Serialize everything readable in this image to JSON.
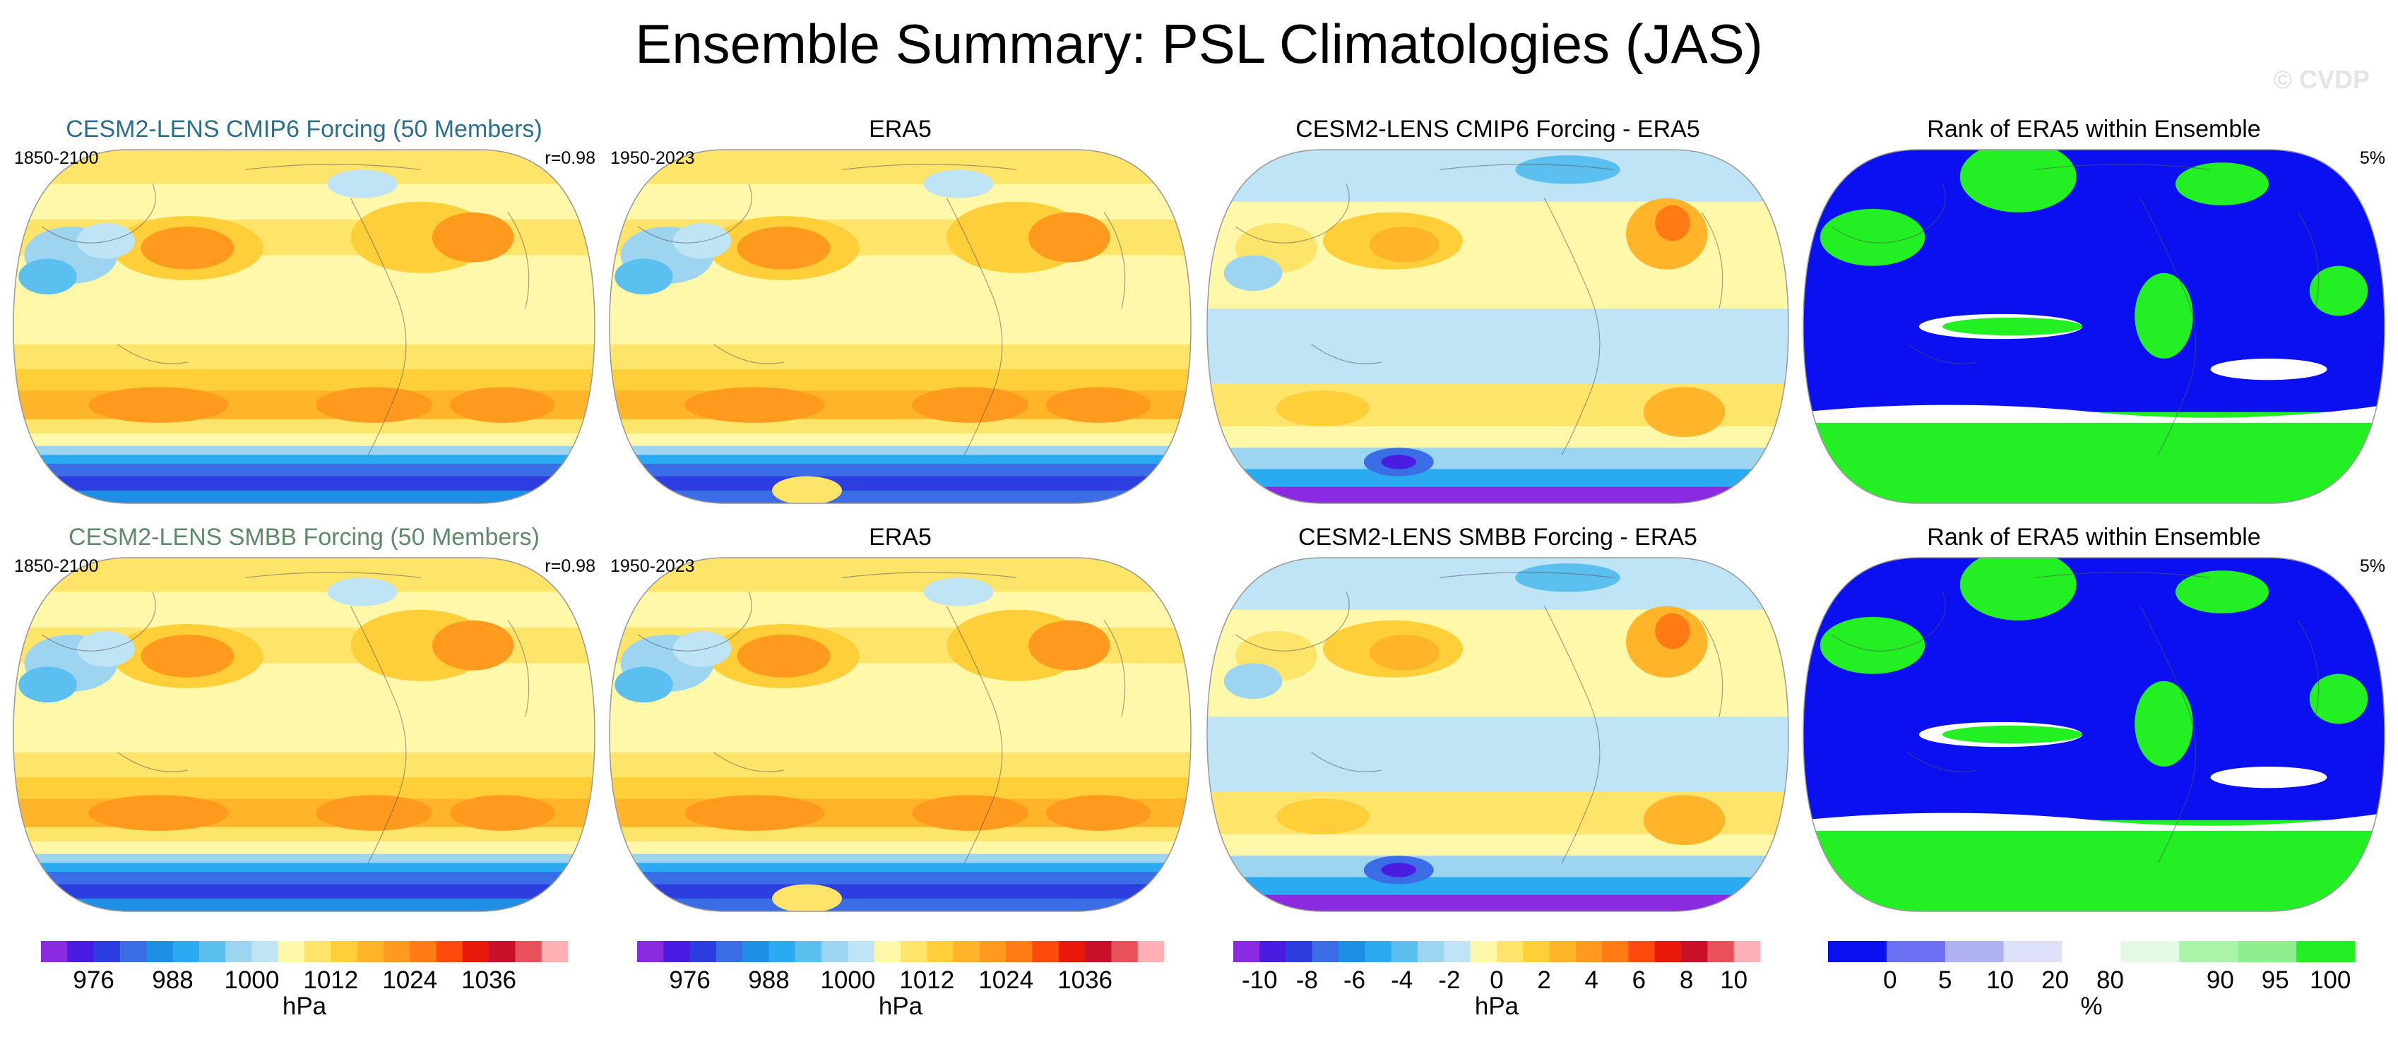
{
  "title": "Ensemble Summary: PSL Climatologies (JAS)",
  "watermark": "© CVDP",
  "panels": [
    {
      "title": "CESM2-LENS CMIP6 Forcing (50 Members)",
      "title_color": "#2c6f8c",
      "left": "1850-2100",
      "right": "r=0.98",
      "kind": "clim"
    },
    {
      "title": "ERA5",
      "title_color": "#000000",
      "left": "1950-2023",
      "right": "",
      "kind": "clim"
    },
    {
      "title": "CESM2-LENS CMIP6 Forcing - ERA5",
      "title_color": "#000000",
      "left": "",
      "right": "",
      "kind": "diff"
    },
    {
      "title": "Rank of ERA5 within Ensemble",
      "title_color": "#000000",
      "left": "",
      "right": "5%",
      "kind": "rank"
    },
    {
      "title": "CESM2-LENS SMBB Forcing (50 Members)",
      "title_color": "#5f8a6a",
      "left": "1850-2100",
      "right": "r=0.98",
      "kind": "clim"
    },
    {
      "title": "ERA5",
      "title_color": "#000000",
      "left": "1950-2023",
      "right": "",
      "kind": "clim"
    },
    {
      "title": "CESM2-LENS SMBB Forcing - ERA5",
      "title_color": "#000000",
      "left": "",
      "right": "",
      "kind": "diff"
    },
    {
      "title": "Rank of ERA5 within Ensemble",
      "title_color": "#000000",
      "left": "",
      "right": "5%",
      "kind": "rank"
    }
  ],
  "chart_data": [
    {
      "type": "heatmap",
      "projection": "Robinson",
      "variable": "PSL",
      "season": "JAS",
      "colorbar": {
        "unit": "hPa",
        "tick_labels": [
          "976",
          "988",
          "1000",
          "1012",
          "1024",
          "1036"
        ],
        "colors": [
          "#8a2be2",
          "#4a1be0",
          "#2c3ee0",
          "#3b6ee6",
          "#1f8fe6",
          "#2aaaf0",
          "#5bbfef",
          "#9dd4f0",
          "#bfe4f5",
          "#fff8a8",
          "#ffe46a",
          "#ffcf3a",
          "#ffb42a",
          "#ff9a1e",
          "#ff7a14",
          "#ff4a0e",
          "#e8190a",
          "#c8102a",
          "#e8505a",
          "#ffb0b4"
        ]
      }
    },
    {
      "type": "heatmap",
      "projection": "Robinson",
      "variable": "PSL",
      "colorbar": {
        "unit": "hPa",
        "tick_labels": [
          "976",
          "988",
          "1000",
          "1012",
          "1024",
          "1036"
        ],
        "colors": [
          "#8a2be2",
          "#4a1be0",
          "#2c3ee0",
          "#3b6ee6",
          "#1f8fe6",
          "#2aaaf0",
          "#5bbfef",
          "#9dd4f0",
          "#bfe4f5",
          "#fff8a8",
          "#ffe46a",
          "#ffcf3a",
          "#ffb42a",
          "#ff9a1e",
          "#ff7a14",
          "#ff4a0e",
          "#e8190a",
          "#c8102a",
          "#e8505a",
          "#ffb0b4"
        ]
      }
    },
    {
      "type": "heatmap",
      "projection": "Robinson",
      "variable": "PSL difference",
      "colorbar": {
        "unit": "hPa",
        "tick_labels": [
          "-10",
          "-8",
          "-6",
          "-4",
          "-2",
          "0",
          "2",
          "4",
          "6",
          "8",
          "10"
        ],
        "colors": [
          "#8a2be2",
          "#4a1be0",
          "#2c3ee0",
          "#3b6ee6",
          "#1f8fe6",
          "#2aaaf0",
          "#5bbfef",
          "#9dd4f0",
          "#bfe4f5",
          "#fff8a8",
          "#ffe46a",
          "#ffcf3a",
          "#ffb42a",
          "#ff9a1e",
          "#ff7a14",
          "#ff4a0e",
          "#e8190a",
          "#c8102a",
          "#e8505a",
          "#ffb0b4"
        ]
      }
    },
    {
      "type": "heatmap",
      "projection": "Robinson",
      "variable": "Rank of ERA5",
      "colorbar": {
        "unit": "%",
        "tick_labels": [
          "0",
          "5",
          "10",
          "20",
          "80",
          "90",
          "95",
          "100"
        ],
        "colors": [
          "#0a10f0",
          "#6b70f2",
          "#b0b2f4",
          "#dfe0fa",
          "#ffffff",
          "#e2fae2",
          "#a9f4a9",
          "#8cee8c",
          "#22f022"
        ]
      }
    }
  ]
}
